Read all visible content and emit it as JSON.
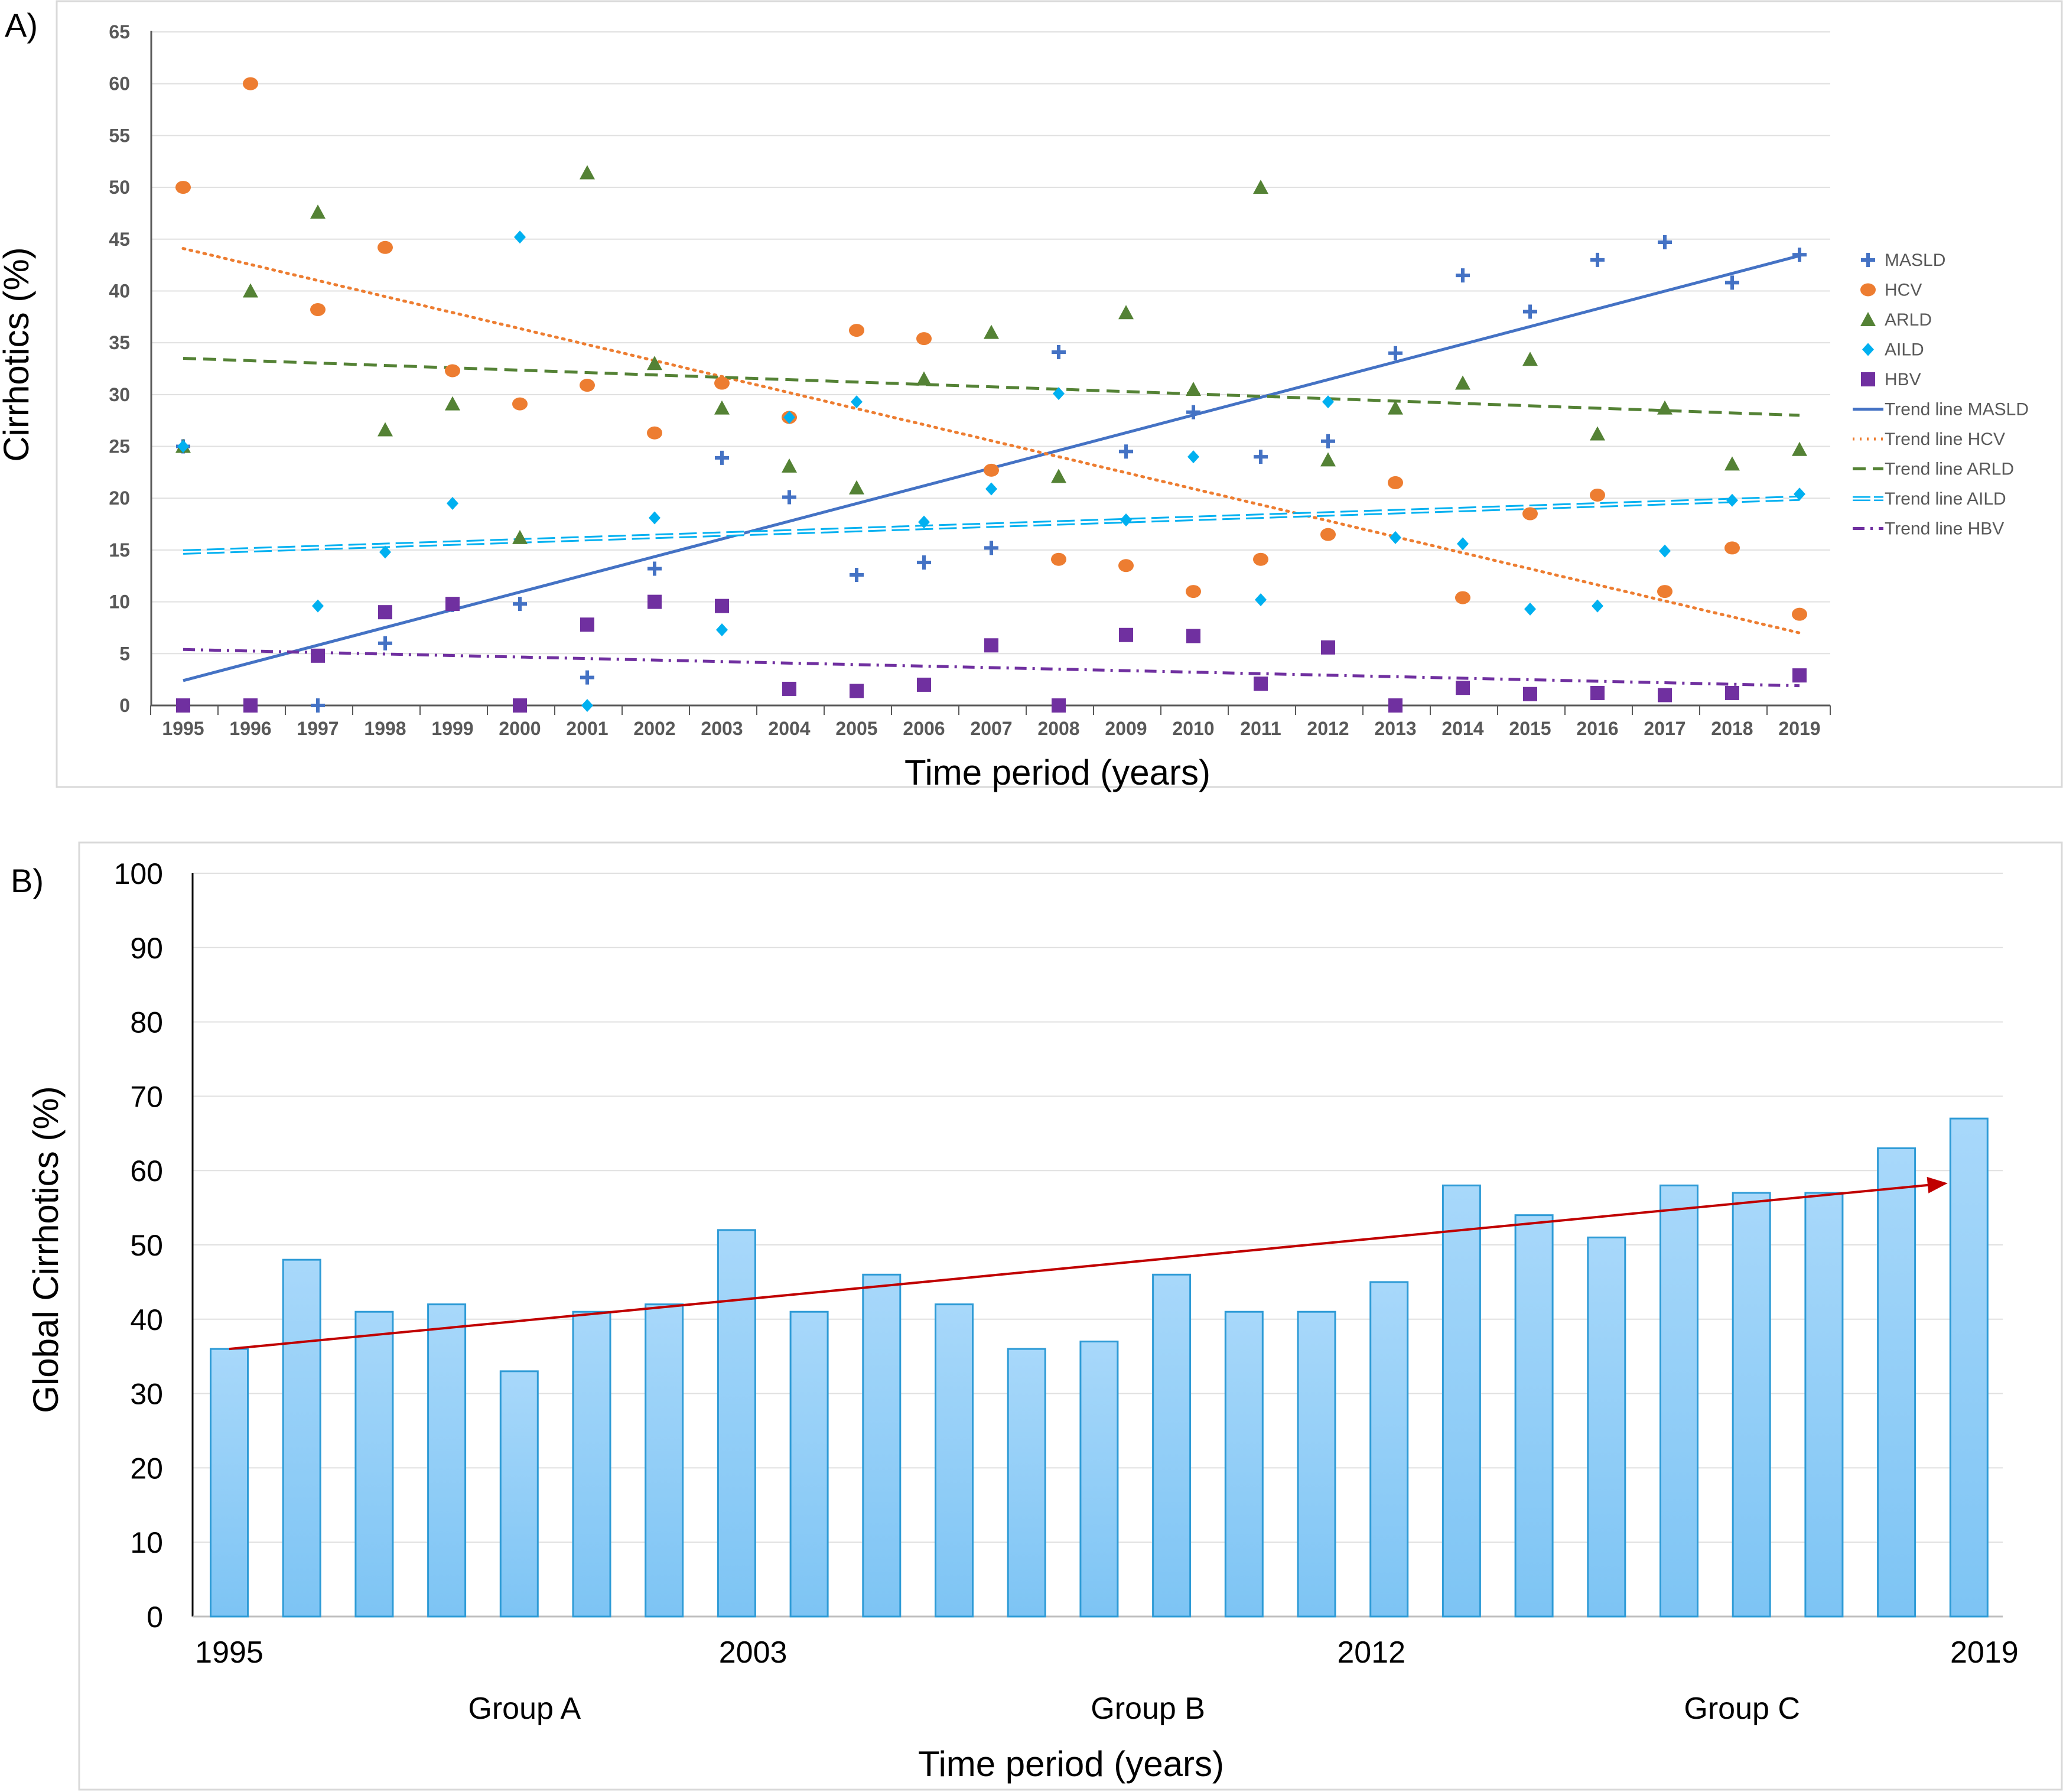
{
  "chart_data": [
    {
      "panel_label": "A)",
      "type": "scatter",
      "xlabel": "Time period (years)",
      "ylabel": "Cirrhotics (%)",
      "ylim": [
        0,
        65
      ],
      "yticks": [
        0,
        5,
        10,
        15,
        20,
        25,
        30,
        35,
        40,
        45,
        50,
        55,
        60,
        65
      ],
      "categories": [
        "1995",
        "1996",
        "1997",
        "1998",
        "1999",
        "2000",
        "2001",
        "2002",
        "2003",
        "2004",
        "2005",
        "2006",
        "2007",
        "2008",
        "2009",
        "2010",
        "2011",
        "2012",
        "2013",
        "2014",
        "2015",
        "2016",
        "2017",
        "2018",
        "2019"
      ],
      "grid": true,
      "legend_position": "right",
      "series": [
        {
          "name": "MASLD",
          "marker": "plus",
          "color": "#4472C4",
          "values": [
            25,
            0,
            0,
            6,
            9.7,
            9.8,
            2.7,
            13.2,
            23.9,
            20.1,
            12.6,
            13.8,
            15.2,
            34.1,
            24.5,
            28.3,
            24,
            25.5,
            34,
            41.5,
            38,
            43,
            44.7,
            40.8,
            43.5
          ]
        },
        {
          "name": "HCV",
          "marker": "circle",
          "color": "#ED7D31",
          "values": [
            50,
            60,
            38.2,
            44.2,
            32.3,
            29.1,
            30.9,
            26.3,
            31.1,
            27.8,
            36.2,
            35.4,
            22.7,
            14.1,
            13.5,
            11,
            14.1,
            16.5,
            21.5,
            10.4,
            18.5,
            20.3,
            11,
            15.2,
            8.8
          ]
        },
        {
          "name": "ARLD",
          "marker": "triangle",
          "color": "#548235",
          "values": [
            25,
            40,
            47.6,
            26.6,
            29.1,
            16.2,
            51.4,
            33,
            28.7,
            23.1,
            21,
            31.5,
            36,
            22.1,
            37.9,
            30.5,
            50,
            23.7,
            28.7,
            31.1,
            33.4,
            26.2,
            28.7,
            23.3,
            24.7
          ]
        },
        {
          "name": "AILD",
          "marker": "diamond",
          "color": "#00B0F0",
          "values": [
            25,
            0,
            9.6,
            14.8,
            19.5,
            45.2,
            0,
            18.1,
            7.3,
            27.8,
            29.3,
            17.7,
            20.9,
            30.1,
            17.9,
            24,
            10.2,
            29.3,
            16.2,
            15.6,
            9.3,
            9.6,
            14.9,
            19.8,
            20.4
          ]
        },
        {
          "name": "HBV",
          "marker": "square",
          "color": "#7030A0",
          "values": [
            0,
            0,
            4.8,
            9,
            9.8,
            0,
            7.8,
            10,
            9.6,
            1.6,
            1.4,
            2,
            5.8,
            0,
            6.8,
            6.7,
            2.1,
            5.6,
            0,
            1.7,
            1.1,
            1.2,
            1,
            1.2,
            2.9
          ]
        }
      ],
      "trend_lines": [
        {
          "name": "Trend line MASLD",
          "style": "solid",
          "color": "#4472C4",
          "start": 2.4,
          "end": 43.4
        },
        {
          "name": "Trend line HCV",
          "style": "dotted",
          "color": "#ED7D31",
          "start": 44.1,
          "end": 7
        },
        {
          "name": "Trend line ARLD",
          "style": "dashed",
          "color": "#548235",
          "start": 33.5,
          "end": 28
        },
        {
          "name": "Trend line AILD",
          "style": "double-dashed",
          "color": "#00B0F0",
          "start": 14.8,
          "end": 20
        },
        {
          "name": "Trend line HBV",
          "style": "dash-dot",
          "color": "#7030A0",
          "start": 5.4,
          "end": 1.9
        }
      ]
    },
    {
      "panel_label": "B)",
      "type": "bar",
      "xlabel": "Time period (years)",
      "ylabel": "Global Cirrhotics (%)",
      "ylim": [
        0,
        100
      ],
      "yticks": [
        0,
        10,
        20,
        30,
        40,
        50,
        60,
        70,
        80,
        90,
        100
      ],
      "x_labels": [
        "1995",
        "2003",
        "2012",
        "2019"
      ],
      "group_labels": [
        "Group A",
        "Group B",
        "Group C"
      ],
      "grid": true,
      "bar_color": "#7DC4F4",
      "values": [
        36,
        48,
        41,
        42,
        33,
        41,
        42,
        52,
        41,
        46,
        42,
        36,
        37,
        46,
        41,
        41,
        45,
        58,
        54,
        51,
        58,
        57,
        57,
        63,
        67
      ],
      "trend_arrow": {
        "color": "#C00000",
        "start": 36,
        "end": 58.3
      }
    }
  ]
}
